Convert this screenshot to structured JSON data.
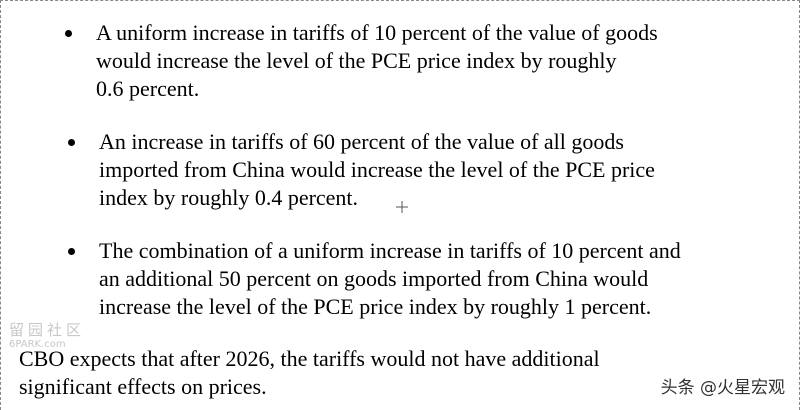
{
  "bullets": [
    [
      "A uniform increase in tariffs of 10 percent of the value of goods",
      "would increase the level of the PCE price index by roughly",
      "0.6 percent."
    ],
    [
      "An increase in tariffs of 60 percent of the value of all goods",
      "imported from China would increase the level of the PCE price",
      "index by roughly 0.4 percent."
    ],
    [
      "The combination of a uniform increase in tariffs of 10 percent and",
      "an additional 50 percent on goods imported from China would",
      "increase the level of the PCE price index by roughly 1 percent."
    ]
  ],
  "paragraph": [
    "CBO expects that after 2026, the tariffs would not have additional",
    "significant effects on prices."
  ],
  "watermark": {
    "name": "留园社区",
    "site": "6PARK.com"
  },
  "brand": "头条 @火星宏观"
}
